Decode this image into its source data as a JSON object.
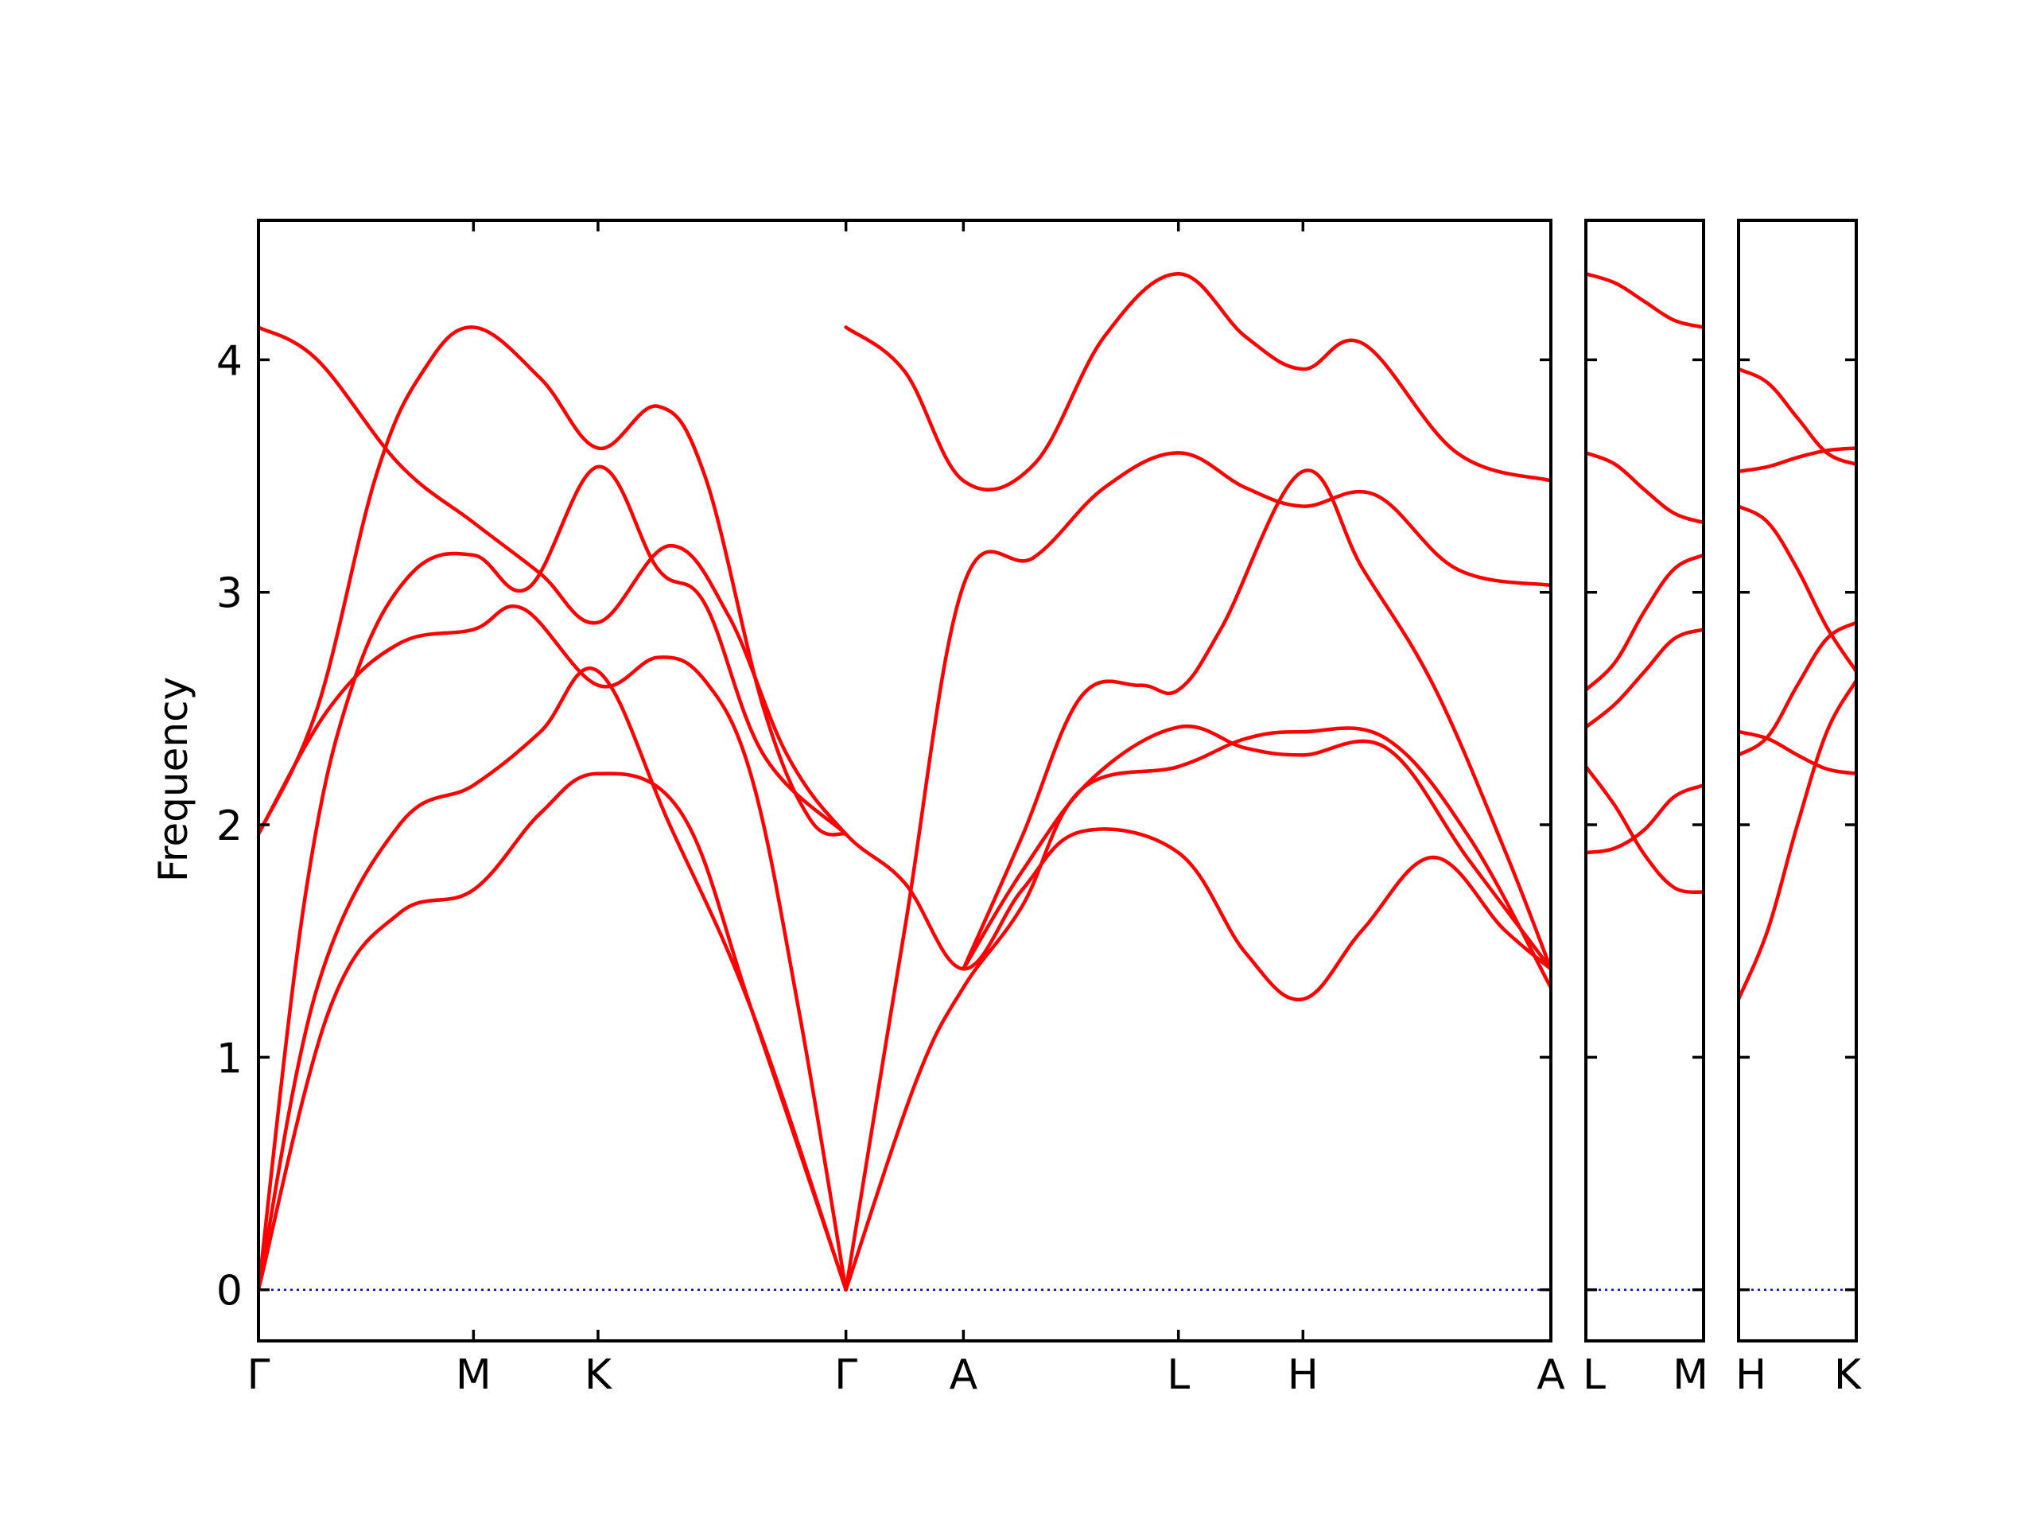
{
  "chart_data": {
    "type": "line",
    "title": "",
    "ylabel": "Frequency",
    "xlabel": "",
    "ylim": [
      -0.22,
      4.6
    ],
    "yticks": [
      0,
      1,
      2,
      3,
      4
    ],
    "ytick_labels": [
      "0",
      "1",
      "2",
      "3",
      "4"
    ],
    "grid": false,
    "colors": {
      "bands": "#ff0000",
      "zero_line": "#0000cc"
    },
    "panels": [
      {
        "name": "panel-main",
        "xlim": [
          0,
          11
        ],
        "ticks": [
          {
            "x": 0,
            "label": "Γ"
          },
          {
            "x": 1.83,
            "label": "M"
          },
          {
            "x": 2.89,
            "label": "K"
          },
          {
            "x": 5.0,
            "label": "Γ"
          },
          {
            "x": 6.0,
            "label": "A"
          },
          {
            "x": 7.83,
            "label": "L"
          },
          {
            "x": 8.89,
            "label": "H"
          },
          {
            "x": 11.0,
            "label": "A"
          }
        ],
        "series": [
          {
            "points": [
              [
                0,
                4.14
              ],
              [
                0.5,
                4.0
              ],
              [
                1.2,
                3.55
              ],
              [
                1.83,
                3.3
              ],
              [
                2.4,
                3.08
              ],
              [
                2.89,
                2.87
              ],
              [
                3.5,
                3.2
              ],
              [
                4.0,
                2.9
              ],
              [
                4.5,
                2.3
              ],
              [
                5.0,
                1.96
              ],
              [
                5.5,
                1.75
              ],
              [
                6.0,
                1.38
              ],
              [
                6.5,
                1.72
              ],
              [
                7.0,
                1.97
              ],
              [
                7.83,
                1.88
              ],
              [
                8.4,
                1.45
              ],
              [
                8.89,
                1.25
              ],
              [
                9.4,
                1.55
              ],
              [
                10.0,
                1.86
              ],
              [
                10.6,
                1.55
              ],
              [
                11.0,
                1.38
              ]
            ]
          },
          {
            "points": [
              [
                0,
                1.96
              ],
              [
                0.6,
                2.5
              ],
              [
                1.2,
                2.78
              ],
              [
                1.83,
                2.84
              ],
              [
                2.25,
                2.93
              ],
              [
                2.89,
                2.6
              ],
              [
                3.4,
                2.72
              ],
              [
                3.8,
                2.62
              ],
              [
                4.2,
                2.2
              ],
              [
                4.6,
                1.2
              ],
              [
                5.0,
                0.0
              ]
            ]
          },
          {
            "points": [
              [
                0,
                1.96
              ],
              [
                0.5,
                2.5
              ],
              [
                1.0,
                3.5
              ],
              [
                1.4,
                3.95
              ],
              [
                1.83,
                4.14
              ],
              [
                2.4,
                3.92
              ],
              [
                2.89,
                3.62
              ],
              [
                3.4,
                3.8
              ],
              [
                3.8,
                3.5
              ],
              [
                4.3,
                2.5
              ],
              [
                4.7,
                2.02
              ],
              [
                5.0,
                1.96
              ]
            ]
          },
          {
            "points": [
              [
                0,
                0.0
              ],
              [
                0.5,
                1.3
              ],
              [
                1.2,
                2.0
              ],
              [
                1.83,
                2.17
              ],
              [
                2.4,
                2.4
              ],
              [
                2.89,
                2.66
              ],
              [
                3.5,
                2.0
              ],
              [
                4.2,
                1.2
              ],
              [
                5.0,
                0.0
              ]
            ]
          },
          {
            "points": [
              [
                0,
                0.0
              ],
              [
                0.6,
                1.2
              ],
              [
                1.2,
                1.62
              ],
              [
                1.83,
                1.72
              ],
              [
                2.4,
                2.05
              ],
              [
                2.89,
                2.22
              ],
              [
                3.6,
                2.05
              ],
              [
                4.2,
                1.2
              ],
              [
                5.0,
                0.0
              ]
            ]
          },
          {
            "points": [
              [
                0,
                0.0
              ],
              [
                0.4,
                1.7
              ],
              [
                0.8,
                2.6
              ],
              [
                1.3,
                3.08
              ],
              [
                1.83,
                3.16
              ],
              [
                2.3,
                3.02
              ],
              [
                2.89,
                3.54
              ],
              [
                3.4,
                3.1
              ],
              [
                3.8,
                2.95
              ],
              [
                4.3,
                2.3
              ],
              [
                5.0,
                1.96
              ]
            ]
          },
          {
            "points": [
              [
                5.0,
                4.14
              ],
              [
                5.5,
                3.95
              ],
              [
                6.0,
                3.48
              ],
              [
                6.6,
                3.55
              ],
              [
                7.2,
                4.1
              ],
              [
                7.83,
                4.37
              ],
              [
                8.4,
                4.1
              ],
              [
                8.89,
                3.96
              ],
              [
                9.4,
                4.07
              ],
              [
                10.2,
                3.6
              ],
              [
                11.0,
                3.48
              ]
            ]
          },
          {
            "points": [
              [
                5.0,
                0.0
              ],
              [
                5.5,
                1.55
              ],
              [
                6.0,
                3.03
              ],
              [
                6.6,
                3.15
              ],
              [
                7.2,
                3.45
              ],
              [
                7.83,
                3.6
              ],
              [
                8.4,
                3.45
              ],
              [
                8.89,
                3.37
              ],
              [
                9.5,
                3.42
              ],
              [
                10.2,
                3.1
              ],
              [
                11.0,
                3.03
              ]
            ]
          },
          {
            "points": [
              [
                5.0,
                0.0
              ],
              [
                5.6,
                0.9
              ],
              [
                6.0,
                1.3
              ],
              [
                6.5,
                1.65
              ],
              [
                7.0,
                2.15
              ],
              [
                7.83,
                2.25
              ],
              [
                8.4,
                2.37
              ],
              [
                8.89,
                2.4
              ],
              [
                9.6,
                2.37
              ],
              [
                10.3,
                1.95
              ],
              [
                11.0,
                1.3
              ]
            ]
          },
          {
            "points": [
              [
                6.0,
                1.38
              ],
              [
                6.5,
                1.8
              ],
              [
                7.1,
                2.2
              ],
              [
                7.83,
                2.42
              ],
              [
                8.4,
                2.33
              ],
              [
                8.89,
                2.3
              ],
              [
                9.6,
                2.33
              ],
              [
                10.3,
                1.85
              ],
              [
                11.0,
                1.38
              ]
            ]
          },
          {
            "points": [
              [
                6.0,
                1.38
              ],
              [
                6.5,
                1.95
              ],
              [
                7.0,
                2.55
              ],
              [
                7.5,
                2.6
              ],
              [
                7.83,
                2.58
              ],
              [
                8.2,
                2.85
              ],
              [
                8.89,
                3.52
              ],
              [
                9.4,
                3.1
              ],
              [
                10.0,
                2.6
              ],
              [
                10.6,
                1.9
              ],
              [
                11.0,
                1.38
              ]
            ]
          }
        ]
      },
      {
        "name": "panel-lm",
        "xlim": [
          0,
          1
        ],
        "ticks": [
          {
            "x": 0,
            "label": "L"
          },
          {
            "x": 1,
            "label": "M"
          }
        ],
        "series": [
          {
            "points": [
              [
                0,
                4.37
              ],
              [
                0.25,
                4.33
              ],
              [
                0.5,
                4.25
              ],
              [
                0.75,
                4.17
              ],
              [
                1,
                4.14
              ]
            ]
          },
          {
            "points": [
              [
                0,
                3.6
              ],
              [
                0.25,
                3.55
              ],
              [
                0.5,
                3.44
              ],
              [
                0.75,
                3.34
              ],
              [
                1,
                3.3
              ]
            ]
          },
          {
            "points": [
              [
                0,
                2.58
              ],
              [
                0.25,
                2.7
              ],
              [
                0.5,
                2.92
              ],
              [
                0.75,
                3.1
              ],
              [
                1,
                3.16
              ]
            ]
          },
          {
            "points": [
              [
                0,
                2.42
              ],
              [
                0.25,
                2.52
              ],
              [
                0.5,
                2.66
              ],
              [
                0.75,
                2.8
              ],
              [
                1,
                2.84
              ]
            ]
          },
          {
            "points": [
              [
                0,
                2.25
              ],
              [
                0.25,
                2.08
              ],
              [
                0.5,
                1.87
              ],
              [
                0.75,
                1.73
              ],
              [
                1,
                1.71
              ]
            ]
          },
          {
            "points": [
              [
                0,
                1.88
              ],
              [
                0.25,
                1.9
              ],
              [
                0.5,
                1.98
              ],
              [
                0.75,
                2.12
              ],
              [
                1,
                2.17
              ]
            ]
          }
        ]
      },
      {
        "name": "panel-hk",
        "xlim": [
          0,
          1
        ],
        "ticks": [
          {
            "x": 0,
            "label": "H"
          },
          {
            "x": 1,
            "label": "K"
          }
        ],
        "series": [
          {
            "points": [
              [
                0,
                3.96
              ],
              [
                0.25,
                3.9
              ],
              [
                0.5,
                3.75
              ],
              [
                0.75,
                3.6
              ],
              [
                1,
                3.55
              ]
            ]
          },
          {
            "points": [
              [
                0,
                3.52
              ],
              [
                0.25,
                3.54
              ],
              [
                0.5,
                3.58
              ],
              [
                0.75,
                3.61
              ],
              [
                1,
                3.62
              ]
            ]
          },
          {
            "points": [
              [
                0,
                3.37
              ],
              [
                0.25,
                3.3
              ],
              [
                0.5,
                3.1
              ],
              [
                0.75,
                2.85
              ],
              [
                1,
                2.66
              ]
            ]
          },
          {
            "points": [
              [
                0,
                2.4
              ],
              [
                0.25,
                2.37
              ],
              [
                0.5,
                2.3
              ],
              [
                0.75,
                2.24
              ],
              [
                1,
                2.22
              ]
            ]
          },
          {
            "points": [
              [
                0,
                2.3
              ],
              [
                0.25,
                2.38
              ],
              [
                0.5,
                2.6
              ],
              [
                0.75,
                2.8
              ],
              [
                1,
                2.87
              ]
            ]
          },
          {
            "points": [
              [
                0,
                1.25
              ],
              [
                0.25,
                1.55
              ],
              [
                0.5,
                2.0
              ],
              [
                0.75,
                2.4
              ],
              [
                1,
                2.62
              ]
            ]
          }
        ]
      }
    ]
  }
}
